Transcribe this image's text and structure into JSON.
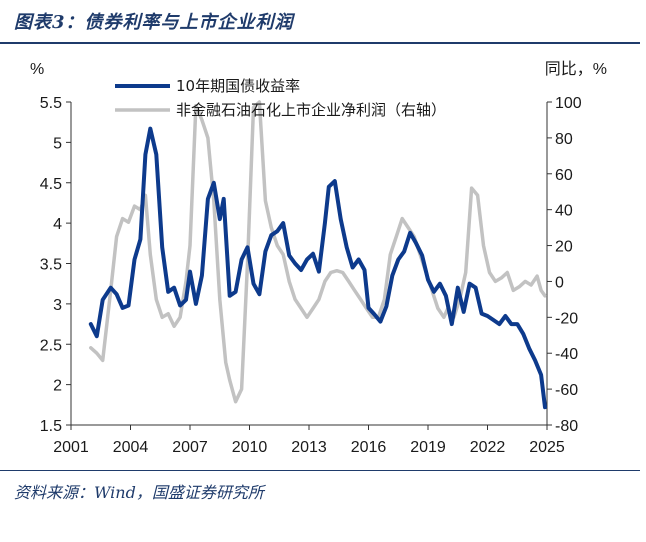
{
  "header": {
    "title": "图表3：债券利率与上市企业利润"
  },
  "footer": {
    "source": "资料来源：Wind，国盛证券研究所"
  },
  "colors": {
    "rule": "#1f3b6b",
    "bond_series": "#0d3a8c",
    "profit_series": "#c2c2c2"
  },
  "chart_data": {
    "type": "line",
    "left_unit": "%",
    "right_unit": "同比，%",
    "x_ticks": [
      "2001",
      "2004",
      "2007",
      "2010",
      "2013",
      "2016",
      "2019",
      "2022",
      "2025"
    ],
    "xlim": [
      2001,
      2025
    ],
    "left_ticks": [
      "5.5",
      "5",
      "4.5",
      "4",
      "3.5",
      "3",
      "2.5",
      "2",
      "1.5"
    ],
    "left_ylim": [
      1.5,
      5.5
    ],
    "right_ticks": [
      "100",
      "80",
      "60",
      "40",
      "20",
      "0",
      "-20",
      "-40",
      "-60",
      "-80"
    ],
    "right_ylim": [
      -80,
      100
    ],
    "series": [
      {
        "name": "10年期国债收益率",
        "axis": "left",
        "x": [
          2002.0,
          2002.3,
          2002.6,
          2003.0,
          2003.3,
          2003.6,
          2003.9,
          2004.2,
          2004.5,
          2004.75,
          2005.0,
          2005.3,
          2005.6,
          2005.9,
          2006.2,
          2006.5,
          2006.8,
          2007.0,
          2007.3,
          2007.6,
          2007.9,
          2008.2,
          2008.4,
          2008.5,
          2008.7,
          2009.0,
          2009.3,
          2009.6,
          2009.9,
          2010.2,
          2010.5,
          2010.8,
          2011.1,
          2011.4,
          2011.7,
          2012.0,
          2012.3,
          2012.6,
          2012.9,
          2013.2,
          2013.5,
          2013.8,
          2014.0,
          2014.3,
          2014.6,
          2014.9,
          2015.2,
          2015.5,
          2015.8,
          2016.0,
          2016.3,
          2016.6,
          2016.9,
          2017.2,
          2017.5,
          2017.8,
          2018.1,
          2018.4,
          2018.7,
          2019.0,
          2019.3,
          2019.6,
          2019.9,
          2020.2,
          2020.5,
          2020.8,
          2021.1,
          2021.4,
          2021.7,
          2022.0,
          2022.3,
          2022.6,
          2022.9,
          2023.2,
          2023.5,
          2023.8,
          2024.1,
          2024.4,
          2024.7,
          2024.9
        ],
        "values": [
          2.75,
          2.6,
          3.05,
          3.2,
          3.12,
          2.95,
          2.98,
          3.55,
          3.8,
          4.85,
          5.17,
          4.85,
          3.7,
          3.15,
          3.2,
          2.98,
          3.05,
          3.4,
          3.0,
          3.35,
          4.3,
          4.5,
          4.2,
          4.05,
          4.3,
          3.1,
          3.15,
          3.55,
          3.7,
          3.25,
          3.12,
          3.65,
          3.85,
          3.9,
          4.0,
          3.6,
          3.5,
          3.42,
          3.55,
          3.62,
          3.4,
          4.0,
          4.45,
          4.52,
          4.05,
          3.7,
          3.45,
          3.55,
          3.42,
          2.95,
          2.87,
          2.78,
          2.97,
          3.35,
          3.55,
          3.65,
          3.88,
          3.75,
          3.6,
          3.3,
          3.15,
          3.25,
          3.1,
          2.75,
          3.2,
          2.9,
          3.25,
          3.2,
          2.88,
          2.85,
          2.8,
          2.75,
          2.85,
          2.75,
          2.75,
          2.63,
          2.45,
          2.3,
          2.12,
          1.72
        ]
      },
      {
        "name": "非金融石油石化上市企业净利润（右轴）",
        "axis": "right",
        "x": [
          2002.0,
          2002.3,
          2002.6,
          2003.0,
          2003.3,
          2003.6,
          2003.9,
          2004.2,
          2004.5,
          2004.75,
          2005.0,
          2005.3,
          2005.6,
          2005.9,
          2006.2,
          2006.5,
          2006.8,
          2007.0,
          2007.3,
          2007.6,
          2007.9,
          2008.2,
          2008.5,
          2008.8,
          2009.0,
          2009.3,
          2009.6,
          2009.9,
          2010.2,
          2010.5,
          2010.8,
          2011.1,
          2011.4,
          2011.7,
          2012.0,
          2012.3,
          2012.6,
          2012.9,
          2013.2,
          2013.5,
          2013.8,
          2014.1,
          2014.4,
          2014.7,
          2015.0,
          2015.3,
          2015.6,
          2015.9,
          2016.2,
          2016.5,
          2016.8,
          2017.1,
          2017.4,
          2017.7,
          2018.0,
          2018.3,
          2018.6,
          2018.9,
          2019.2,
          2019.5,
          2019.8,
          2020.0,
          2020.3,
          2020.6,
          2020.9,
          2021.2,
          2021.5,
          2021.8,
          2022.1,
          2022.4,
          2022.7,
          2023.0,
          2023.3,
          2023.6,
          2023.9,
          2024.2,
          2024.5,
          2024.7,
          2024.9
        ],
        "values": [
          -37,
          -40,
          -44,
          -5,
          25,
          35,
          33,
          42,
          40,
          48,
          15,
          -10,
          -20,
          -18,
          -25,
          -20,
          0,
          20,
          98,
          90,
          80,
          45,
          -10,
          -45,
          -55,
          -67,
          -60,
          10,
          97,
          100,
          45,
          30,
          20,
          15,
          0,
          -10,
          -15,
          -20,
          -15,
          -10,
          0,
          5,
          6,
          5,
          0,
          -5,
          -10,
          -15,
          -20,
          -20,
          -10,
          15,
          25,
          35,
          30,
          25,
          15,
          5,
          -5,
          -15,
          -20,
          -15,
          -20,
          -10,
          5,
          52,
          48,
          20,
          5,
          0,
          2,
          5,
          -5,
          -3,
          0,
          -2,
          3,
          -5,
          -8
        ]
      }
    ],
    "legend": [
      "10年期国债收益率",
      "非金融石油石化上市企业净利润（右轴）"
    ],
    "legend_position": "top-center"
  }
}
